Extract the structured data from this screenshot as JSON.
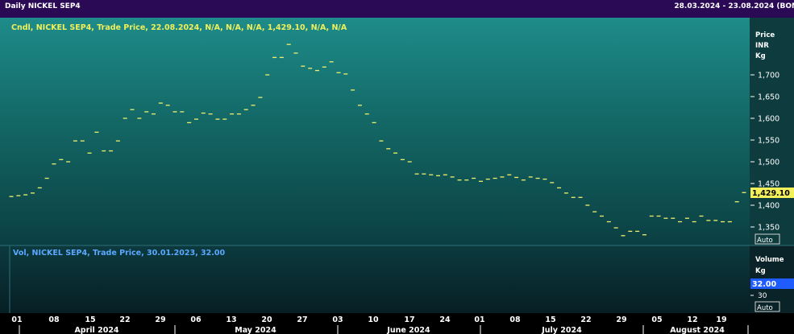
{
  "header": {
    "title": "Daily NICKEL SEP4",
    "date_range": "28.03.2024 - 23.08.2024 (BOM"
  },
  "price_panel": {
    "legend": "Cndl, NICKEL SEP4, Trade Price, 22.08.2024, N/A, N/A, N/A, 1,429.10, N/A, N/A",
    "axis_title": [
      "Price",
      "INR",
      "Kg"
    ],
    "last_label": "1,429.10",
    "auto_label": "Auto"
  },
  "volume_panel": {
    "legend": "Vol, NICKEL SEP4, Trade Price, 30.01.2023, 32.00",
    "axis_title": [
      "Volume",
      "Kg"
    ],
    "value_label": "32.00",
    "tick_label": "30",
    "auto_label": "Auto"
  },
  "colors": {
    "price_marks": "#f2f06a",
    "legend_price": "#f0f05a",
    "legend_volume": "#5aa8ff",
    "price_badge": "#f4f05a",
    "volume_badge": "#1e5cff"
  },
  "chart_data": {
    "type": "line",
    "x_axis": {
      "day_ticks": [
        "01",
        "08",
        "15",
        "22",
        "29",
        "06",
        "13",
        "20",
        "27",
        "03",
        "10",
        "17",
        "24",
        "01",
        "08",
        "15",
        "22",
        "29",
        "05",
        "12",
        "19"
      ],
      "month_labels": [
        "April 2024",
        "May 2024",
        "June 2024",
        "July 2024",
        "August 2024"
      ]
    },
    "y_axis": {
      "ticks": [
        "1,700",
        "1,650",
        "1,600",
        "1,550",
        "1,500",
        "1,450",
        "1,400",
        "1,350"
      ],
      "range": [
        1300,
        1780
      ]
    },
    "series": [
      {
        "values": [
          1420,
          1422,
          1424,
          1428,
          1440,
          1462,
          1495,
          1505,
          1500,
          1548,
          1548,
          1520,
          1568,
          1525,
          1525,
          1548,
          1600,
          1620,
          1600,
          1615,
          1610,
          1635,
          1630,
          1615,
          1615,
          1590,
          1598,
          1612,
          1610,
          1598,
          1598,
          1610,
          1610,
          1620,
          1630,
          1648,
          1700,
          1740,
          1740,
          1770,
          1750,
          1720,
          1715,
          1710,
          1718,
          1730,
          1705,
          1702,
          1665,
          1630,
          1610,
          1590,
          1548,
          1530,
          1520,
          1505,
          1500,
          1472,
          1472,
          1470,
          1468,
          1470,
          1465,
          1458,
          1458,
          1462,
          1455,
          1460,
          1462,
          1465,
          1470,
          1464,
          1458,
          1465,
          1462,
          1460,
          1452,
          1440,
          1428,
          1418,
          1418,
          1400,
          1385,
          1375,
          1362,
          1348,
          1330,
          1340,
          1340,
          1332,
          1375,
          1375,
          1370,
          1370,
          1362,
          1370,
          1362,
          1375,
          1365,
          1365,
          1362,
          1362,
          1408,
          1429.1
        ]
      }
    ]
  }
}
